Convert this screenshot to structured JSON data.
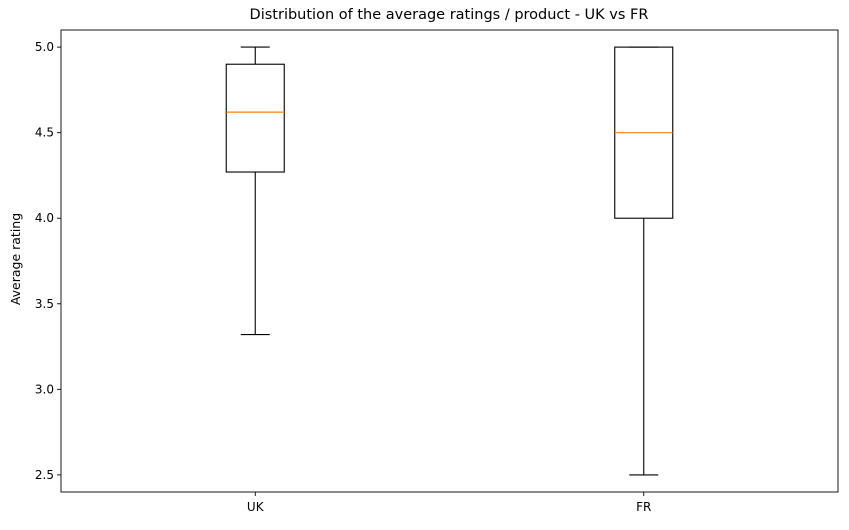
{
  "chart_data": {
    "type": "box",
    "title": "Distribution of the average ratings / product - UK vs FR",
    "xlabel": "",
    "ylabel": "Average rating",
    "categories": [
      "UK",
      "FR"
    ],
    "boxes": [
      {
        "category": "UK",
        "whisker_low": 3.32,
        "q1": 4.27,
        "median": 4.62,
        "q3": 4.9,
        "whisker_high": 5.0
      },
      {
        "category": "FR",
        "whisker_low": 2.5,
        "q1": 4.0,
        "median": 4.5,
        "q3": 5.0,
        "whisker_high": 5.0
      }
    ],
    "ylim": [
      2.4,
      5.1
    ],
    "yticks": [
      2.5,
      3.0,
      3.5,
      4.0,
      4.5,
      5.0
    ],
    "ytick_labels": [
      "2.5",
      "3.0",
      "3.5",
      "4.0",
      "4.5",
      "5.0"
    ],
    "grid": false,
    "colors": {
      "box": "#000000",
      "median": "#ff7f0e",
      "whisker": "#000000"
    }
  }
}
